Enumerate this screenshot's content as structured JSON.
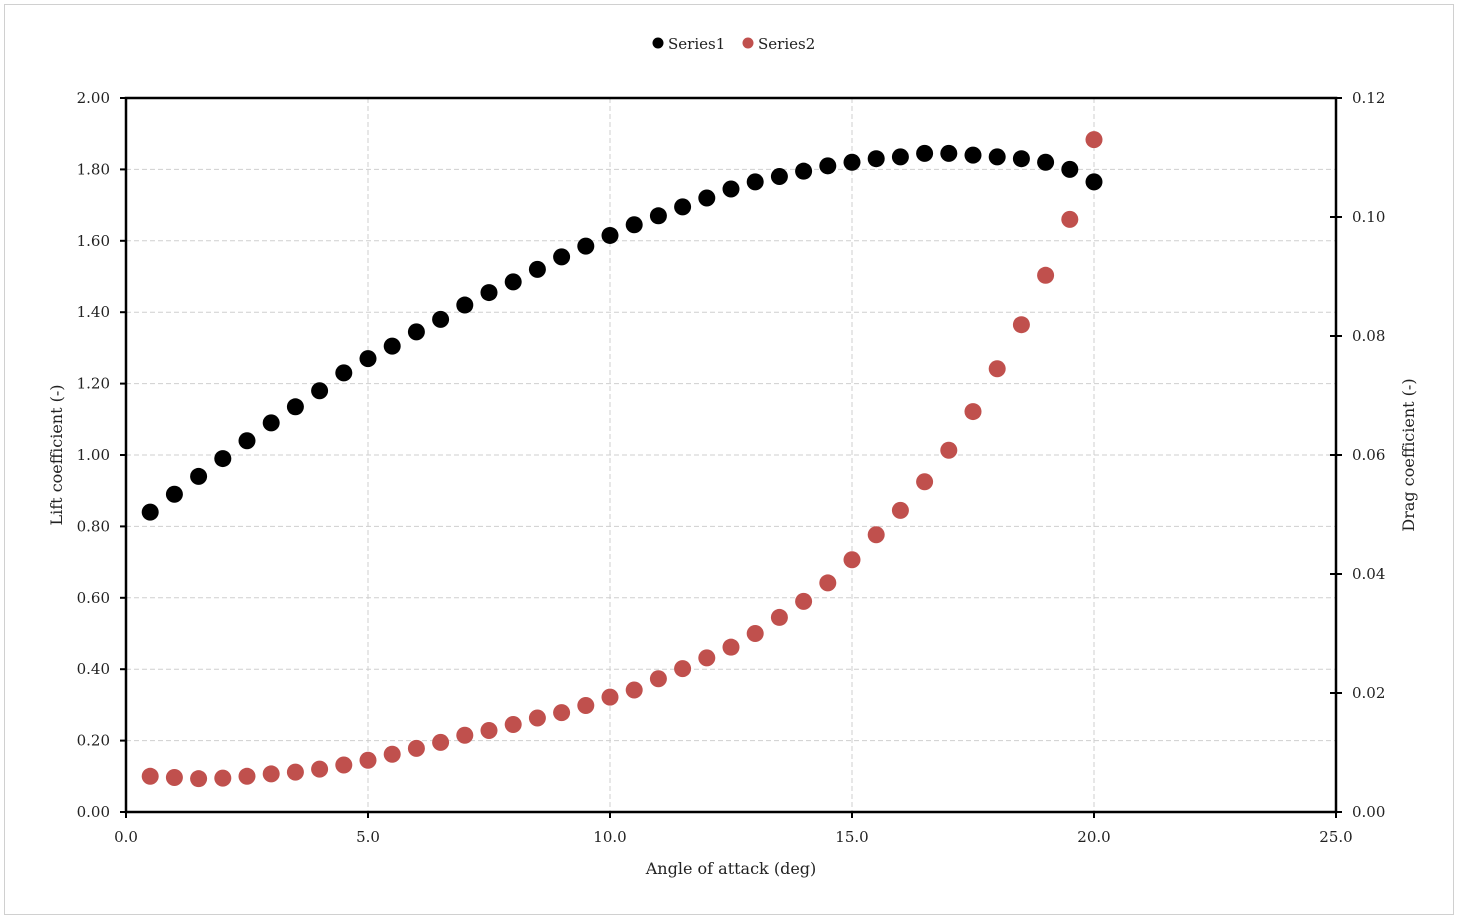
{
  "chart_data": {
    "type": "scatter",
    "xlabel": "Angle of attack (deg)",
    "ylabel": "Lift coefficient (-)",
    "y2label": "Drag coefficient (-)",
    "xlim": [
      0,
      25
    ],
    "ylim": [
      0,
      2
    ],
    "y2lim": [
      0,
      0.12
    ],
    "x_ticks": [
      "0.0",
      "5.0",
      "10.0",
      "15.0",
      "20.0",
      "25.0"
    ],
    "y_ticks": [
      "0.00",
      "0.20",
      "0.40",
      "0.60",
      "0.80",
      "1.00",
      "1.20",
      "1.40",
      "1.60",
      "1.80",
      "2.00"
    ],
    "y2_ticks": [
      "0.00",
      "0.02",
      "0.04",
      "0.06",
      "0.08",
      "0.10",
      "0.12"
    ],
    "grid": true,
    "legend_position": "top-center",
    "x": [
      0.5,
      1.0,
      1.5,
      2.0,
      2.5,
      3.0,
      3.5,
      4.0,
      4.5,
      5.0,
      5.5,
      6.0,
      6.5,
      7.0,
      7.5,
      8.0,
      8.5,
      9.0,
      9.5,
      10.0,
      10.5,
      11.0,
      11.5,
      12.0,
      12.5,
      13.0,
      13.5,
      14.0,
      14.5,
      15.0,
      15.5,
      16.0,
      16.5,
      17.0,
      17.5,
      18.0,
      18.5,
      19.0,
      19.5,
      20.0
    ],
    "series": [
      {
        "name": "Series1",
        "axis": "left",
        "color": "#000000",
        "values": [
          0.84,
          0.89,
          0.94,
          0.99,
          1.04,
          1.09,
          1.135,
          1.18,
          1.23,
          1.27,
          1.305,
          1.345,
          1.38,
          1.42,
          1.455,
          1.485,
          1.52,
          1.555,
          1.585,
          1.615,
          1.645,
          1.67,
          1.695,
          1.72,
          1.745,
          1.765,
          1.78,
          1.795,
          1.81,
          1.82,
          1.83,
          1.835,
          1.845,
          1.845,
          1.84,
          1.835,
          1.83,
          1.82,
          1.8,
          1.765
        ]
      },
      {
        "name": "Series2",
        "axis": "right",
        "color": "#c0504d",
        "values": [
          0.006,
          0.0058,
          0.0056,
          0.0057,
          0.006,
          0.0064,
          0.0067,
          0.0072,
          0.0079,
          0.0087,
          0.0097,
          0.0107,
          0.0117,
          0.0129,
          0.0137,
          0.0147,
          0.0158,
          0.0167,
          0.0179,
          0.0193,
          0.0205,
          0.0224,
          0.0241,
          0.0259,
          0.0277,
          0.03,
          0.0327,
          0.0354,
          0.0385,
          0.0424,
          0.0466,
          0.0507,
          0.0555,
          0.0608,
          0.0673,
          0.0745,
          0.0819,
          0.0902,
          0.0996,
          0.113
        ]
      }
    ]
  }
}
